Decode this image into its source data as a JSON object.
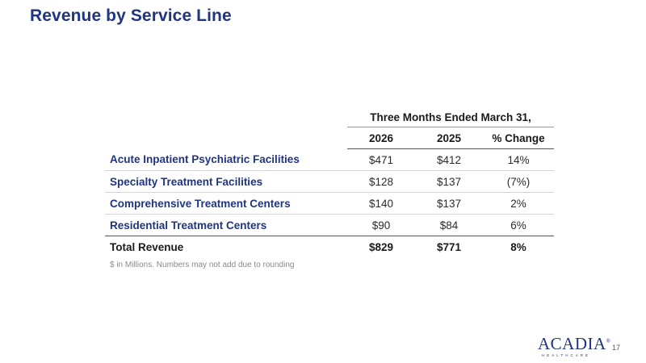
{
  "title": "Revenue by Service Line",
  "table": {
    "period_header": "Three Months Ended March 31,",
    "columns": [
      "2026",
      "2025",
      "% Change"
    ],
    "rows": [
      {
        "label": "Acute Inpatient Psychiatric Facilities",
        "y2026": "$471",
        "y2025": "$412",
        "change": "14%"
      },
      {
        "label": "Specialty Treatment Facilities",
        "y2026": "$128",
        "y2025": "$137",
        "change": "(7%)"
      },
      {
        "label": "Comprehensive Treatment Centers",
        "y2026": "$140",
        "y2025": "$137",
        "change": "2%"
      },
      {
        "label": "Residential Treatment Centers",
        "y2026": "$90",
        "y2025": "$84",
        "change": "6%"
      }
    ],
    "total": {
      "label": "Total Revenue",
      "y2026": "$829",
      "y2025": "$771",
      "change": "8%"
    }
  },
  "footnote": "$ in Millions. Numbers may not add due to rounding",
  "logo": {
    "word": "ACADIA",
    "registered": "®",
    "sub": "HEALTHCARE"
  },
  "page_number": "17",
  "colors": {
    "brand_navy": "#1f3580"
  }
}
